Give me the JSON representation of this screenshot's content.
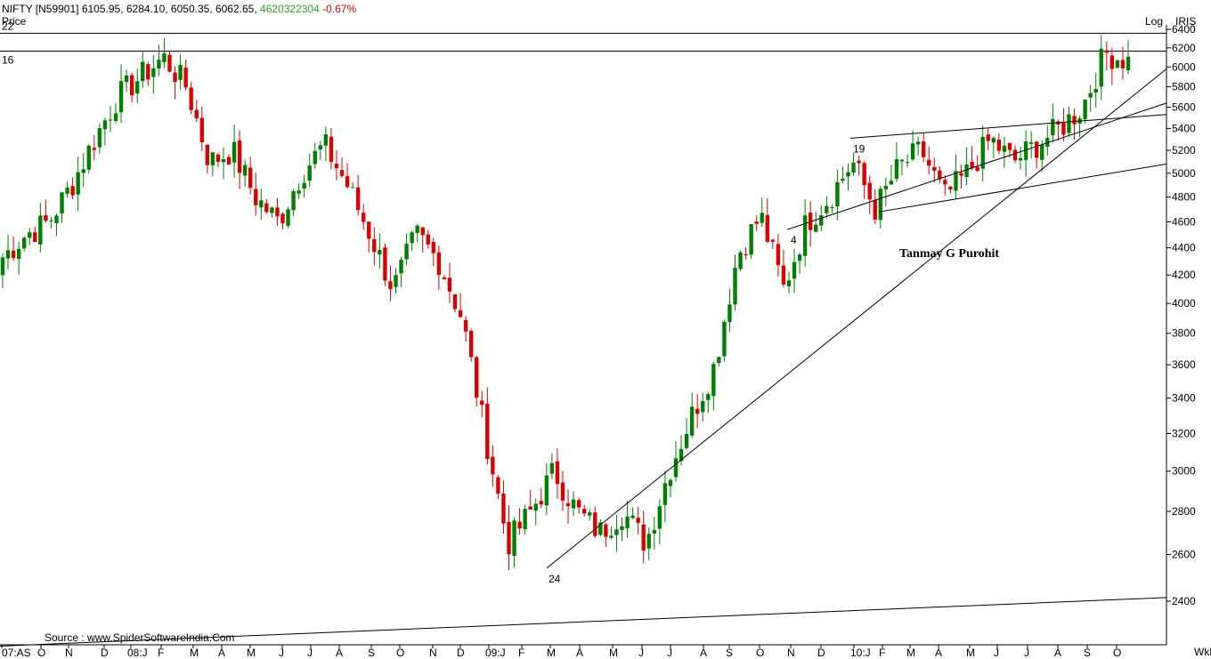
{
  "header": {
    "symbol": "NIFTY [N59901]",
    "ohlc": "6105.95, 6284.10, 6050.35, 6062.65,",
    "volume": "4620322304",
    "change": "-0.67%",
    "price_label": "Price",
    "log_label": "Log",
    "iris_label": "IRIS",
    "week_label": "Wkl",
    "volume_color": "#22aa22",
    "change_color": "#dd0000"
  },
  "chart_data": {
    "type": "candlestick",
    "scale": "log",
    "ylim": [
      2200,
      6400
    ],
    "y_ticks": [
      2400,
      2600,
      2800,
      3000,
      3200,
      3400,
      3600,
      3800,
      4000,
      4200,
      4400,
      4600,
      4800,
      5000,
      5200,
      5400,
      5600,
      5800,
      6000,
      6200,
      6400
    ],
    "x_ticks": [
      "07:AS",
      "O",
      "N",
      "D",
      "08:J",
      "F",
      "M",
      "A",
      "M",
      "J",
      "J",
      "A",
      "S",
      "O",
      "N",
      "D",
      "09:J",
      "F",
      "M",
      "A",
      "M",
      "J",
      "J",
      "A",
      "S",
      "O",
      "N",
      "D",
      "10:J",
      "F",
      "M",
      "A",
      "M",
      "J",
      "J",
      "A",
      "S",
      "O"
    ],
    "up_color": "#008000",
    "down_color": "#dd0000",
    "close_path": [
      4330,
      4500,
      4600,
      4900,
      5300,
      5700,
      5900,
      6100,
      5800,
      5100,
      5200,
      4800,
      4600,
      5000,
      5250,
      4900,
      4500,
      4100,
      4500,
      4300,
      3900,
      3200,
      2650,
      2800,
      3000,
      2800,
      2700,
      2800,
      2650,
      3000,
      3300,
      3600,
      4350,
      4650,
      4100,
      4600,
      4800,
      5100,
      4700,
      5050,
      5200,
      4800,
      5000,
      5300,
      5100,
      5250,
      5400,
      5600,
      6150,
      6060
    ],
    "annotations": [
      {
        "text": "22",
        "price": 6357
      },
      {
        "text": "16",
        "price": 6165
      },
      {
        "text": "24",
        "price": 2540
      },
      {
        "text": "4",
        "price": 4540
      },
      {
        "text": "19",
        "price": 5310
      }
    ],
    "author": "Tanmay G Purohit",
    "source": "Source : www.SpiderSoftwareIndia.Com"
  }
}
